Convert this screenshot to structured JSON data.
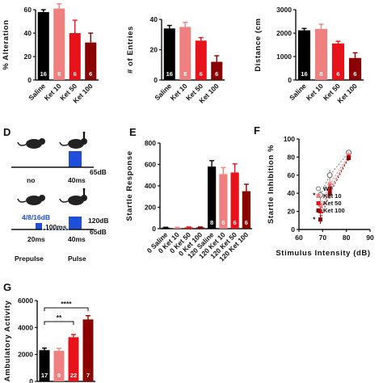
{
  "colors": {
    "saline": "#000000",
    "ket10": "#f08080",
    "ket50": "#e8121a",
    "ket100": "#8b0000",
    "pulse_blue": "#1f4fd8",
    "light_blue": "#8fb3e8",
    "wt_gray": "#ffffff"
  },
  "groups": [
    "Saline",
    "Ket 10",
    "Ket 50",
    "Ket 100"
  ],
  "panel_b": {
    "letter": "",
    "ylabel": "% Alteration",
    "ylim": [
      0,
      60
    ],
    "yticks": [
      0,
      20,
      40,
      60
    ],
    "values": [
      58,
      61,
      40,
      32
    ],
    "errors": [
      2,
      4,
      11,
      8
    ],
    "n_labels": [
      "16",
      "8",
      "6",
      "6"
    ]
  },
  "panel_entries": {
    "letter": "",
    "ylabel": "# of Entries",
    "ylim": [
      0,
      40
    ],
    "yticks": [
      0,
      20,
      40
    ],
    "values": [
      34,
      35,
      26,
      12
    ],
    "errors": [
      2,
      3,
      2,
      4
    ],
    "n_labels": [
      "16",
      "8",
      "6",
      "6"
    ]
  },
  "panel_distance": {
    "letter": "",
    "ylabel": "Distance (cm",
    "ylim": [
      0,
      3000
    ],
    "yticks": [
      0,
      1000,
      2000,
      3000
    ],
    "values": [
      2120,
      2180,
      1560,
      940
    ],
    "errors": [
      80,
      200,
      90,
      220
    ],
    "n_labels": [
      "16",
      "8",
      "6",
      "6"
    ]
  },
  "panel_d": {
    "letter": "D",
    "no_label": "no",
    "pulse_time": "40ms",
    "db_65_top": "65dB",
    "prepulse_levels": "4/8/16dB",
    "gap": "100ms",
    "db_120": "120dB",
    "db_65_bottom": "65dB",
    "prepulse_time": "20ms",
    "pulse_time_2": "40ms",
    "prepulse_label": "Prepulse",
    "pulse_label": "Pulse",
    "exclaim": "!"
  },
  "panel_e": {
    "letter": "E",
    "ylabel": "Startle Response",
    "ylim": [
      0,
      800
    ],
    "yticks": [
      0,
      200,
      400,
      600,
      800
    ],
    "categories": [
      "0 Saline",
      "0 Ket 10",
      "0 Ket 50",
      "0 Ket 100",
      "120 Saline",
      "120 Ket 10",
      "120 Ket 50",
      "120 Ket 100"
    ],
    "values": [
      10,
      10,
      12,
      12,
      580,
      510,
      525,
      350
    ],
    "errors": [
      3,
      3,
      4,
      4,
      55,
      60,
      80,
      65
    ],
    "n_labels": [
      "",
      "",
      "",
      "",
      "8",
      "8",
      "6",
      "6"
    ]
  },
  "panel_f": {
    "letter": "F",
    "ylabel": "Startle Inhibition %",
    "xlabel": "Stimulus Intensity (dB)",
    "ylim": [
      0,
      100
    ],
    "yticks": [
      0,
      20,
      40,
      60,
      80,
      100
    ],
    "xlim": [
      60,
      90
    ],
    "xticks": [
      60,
      70,
      80,
      90
    ],
    "x": [
      69,
      73,
      81
    ],
    "series": [
      {
        "name": "WT",
        "values": [
          38,
          60,
          85
        ],
        "errors": [
          5,
          6,
          3
        ]
      },
      {
        "name": "Ket 10",
        "values": [
          27,
          50,
          82
        ],
        "errors": [
          6,
          6,
          4
        ]
      },
      {
        "name": "Ket 50",
        "values": [
          20,
          44,
          80
        ],
        "errors": [
          5,
          6,
          3
        ]
      },
      {
        "name": "Ket 100",
        "values": [
          11,
          40,
          79
        ],
        "errors": [
          5,
          6,
          3
        ]
      }
    ],
    "sig_marks": [
      "*",
      "*"
    ]
  },
  "panel_g": {
    "letter": "G",
    "ylabel": "Ambulatory Activity",
    "ylim": [
      0,
      6000
    ],
    "yticks": [
      0,
      2000,
      4000,
      6000
    ],
    "values": [
      2320,
      2270,
      3280,
      4600
    ],
    "errors": [
      150,
      180,
      200,
      280
    ],
    "n_labels": [
      "17",
      "8",
      "22",
      "7"
    ],
    "sig1": "****",
    "sig2": "**"
  },
  "chart_data": [
    {
      "type": "bar",
      "categories": [
        "Saline",
        "Ket 10",
        "Ket 50",
        "Ket 100"
      ],
      "values": [
        58,
        61,
        40,
        32
      ],
      "ylabel": "% Alteration",
      "ylim": [
        0,
        60
      ]
    },
    {
      "type": "bar",
      "categories": [
        "Saline",
        "Ket 10",
        "Ket 50",
        "Ket 100"
      ],
      "values": [
        34,
        35,
        26,
        12
      ],
      "ylabel": "# of Entries",
      "ylim": [
        0,
        40
      ]
    },
    {
      "type": "bar",
      "categories": [
        "Saline",
        "Ket 10",
        "Ket 50",
        "Ket 100"
      ],
      "values": [
        2120,
        2180,
        1560,
        940
      ],
      "ylabel": "Distance (cm",
      "ylim": [
        0,
        3000
      ]
    },
    {
      "type": "bar",
      "categories": [
        "0 Saline",
        "0 Ket 10",
        "0 Ket 50",
        "0 Ket 100",
        "120 Saline",
        "120 Ket 10",
        "120 Ket 50",
        "120 Ket 100"
      ],
      "values": [
        10,
        10,
        12,
        12,
        580,
        510,
        525,
        350
      ],
      "ylabel": "Startle Response",
      "ylim": [
        0,
        800
      ]
    },
    {
      "type": "line",
      "x": [
        69,
        73,
        81
      ],
      "series": [
        {
          "name": "WT",
          "values": [
            38,
            60,
            85
          ]
        },
        {
          "name": "Ket 10",
          "values": [
            27,
            50,
            82
          ]
        },
        {
          "name": "Ket 50",
          "values": [
            20,
            44,
            80
          ]
        },
        {
          "name": "Ket 100",
          "values": [
            11,
            40,
            79
          ]
        }
      ],
      "xlabel": "Stimulus Intensity (dB)",
      "ylabel": "Startle Inhibition %",
      "xlim": [
        60,
        90
      ],
      "ylim": [
        0,
        100
      ]
    },
    {
      "type": "bar",
      "categories": [
        "Saline",
        "Ket 10",
        "Ket 50",
        "Ket 100"
      ],
      "values": [
        2320,
        2270,
        3280,
        4600
      ],
      "ylabel": "Ambulatory Activity",
      "ylim": [
        0,
        6000
      ]
    }
  ]
}
